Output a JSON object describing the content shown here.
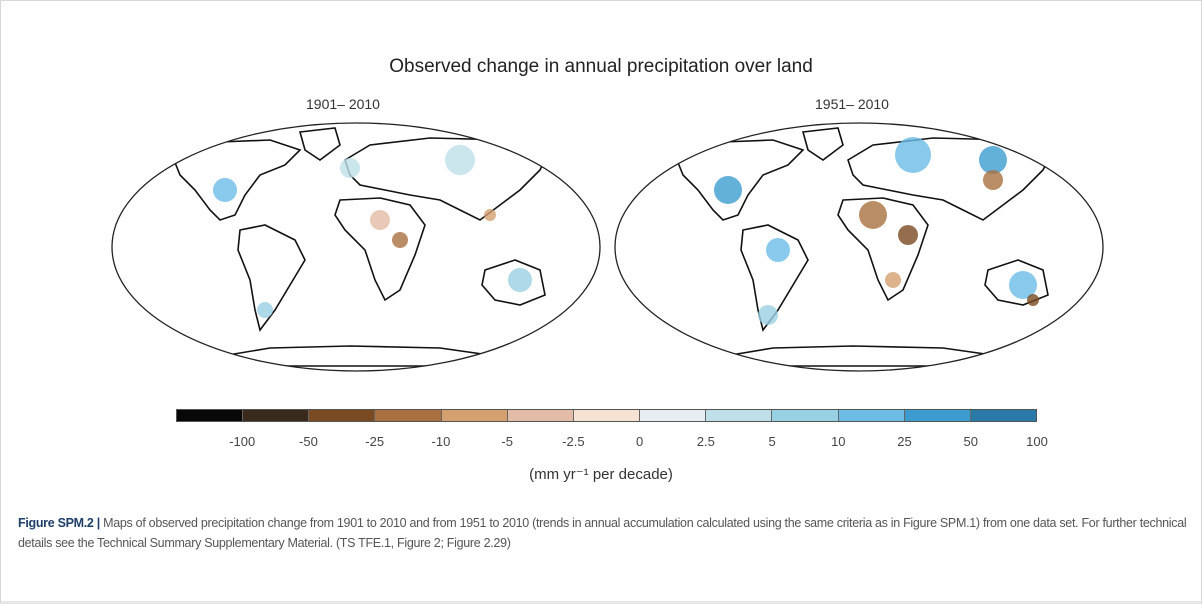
{
  "title": "Observed change in annual precipitation over land",
  "maps": [
    {
      "period": "1901– 2010"
    },
    {
      "period": "1951– 2010"
    }
  ],
  "colorbar": {
    "colors": [
      "#0a0806",
      "#3a2a1e",
      "#7a4a22",
      "#a8703e",
      "#d4a070",
      "#e2bca6",
      "#f6e2d2",
      "#e6eef4",
      "#bfe0e8",
      "#98d0e4",
      "#6cbce6",
      "#3c9cd0",
      "#2a7aa8"
    ],
    "ticks": [
      "-100",
      "-50",
      "-25",
      "-10",
      "-5",
      "-2.5",
      "0",
      "2.5",
      "5",
      "10",
      "25",
      "50",
      "100"
    ],
    "unit": "(mm yr⁻¹ per decade)"
  },
  "caption": {
    "label": "Figure SPM.2 |",
    "text": "Maps of observed precipitation change from 1901 to 2010 and from 1951 to 2010 (trends in annual accumulation calculated using the same criteria as in Figure SPM.1) from one data set. For further technical details see the Technical Summary Supplementary Material. (TS TFE.1, Figure 2; Figure 2.29)"
  }
}
